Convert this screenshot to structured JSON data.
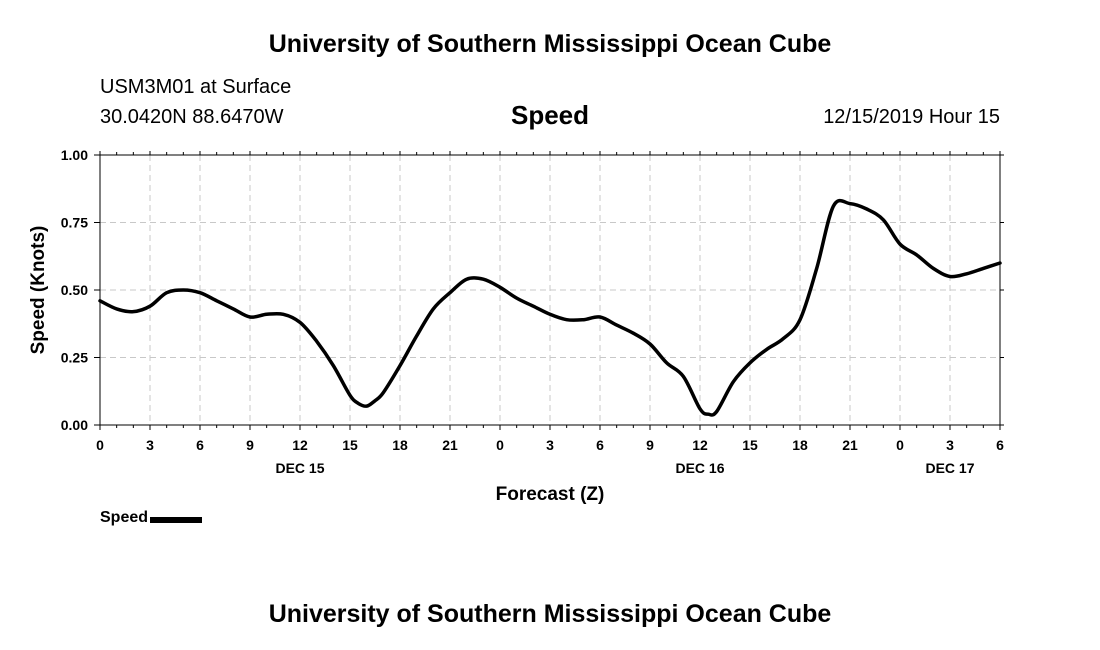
{
  "header": {
    "title": "University of Southern Mississippi Ocean Cube",
    "station": "USM3M01 at Surface",
    "coords": "30.0420N 88.6470W",
    "plot_title": "Speed",
    "timestamp": "12/15/2019 Hour 15"
  },
  "footer": {
    "title": "University of Southern Mississippi Ocean Cube"
  },
  "legend": {
    "label": "Speed"
  },
  "chart_data": {
    "type": "line",
    "title": "Speed",
    "xlabel": "Forecast (Z)",
    "ylabel": "Speed (Knots)",
    "ylim": [
      0,
      1
    ],
    "yticks": [
      "0.00",
      "0.25",
      "0.50",
      "0.75",
      "1.00"
    ],
    "xlim": [
      0,
      54
    ],
    "xticks": [
      {
        "h": 0,
        "label": "0"
      },
      {
        "h": 3,
        "label": "3"
      },
      {
        "h": 6,
        "label": "6"
      },
      {
        "h": 9,
        "label": "9"
      },
      {
        "h": 12,
        "label": "12"
      },
      {
        "h": 15,
        "label": "15"
      },
      {
        "h": 18,
        "label": "18"
      },
      {
        "h": 21,
        "label": "21"
      },
      {
        "h": 24,
        "label": "0"
      },
      {
        "h": 27,
        "label": "3"
      },
      {
        "h": 30,
        "label": "6"
      },
      {
        "h": 33,
        "label": "9"
      },
      {
        "h": 36,
        "label": "12"
      },
      {
        "h": 39,
        "label": "15"
      },
      {
        "h": 42,
        "label": "18"
      },
      {
        "h": 45,
        "label": "21"
      },
      {
        "h": 48,
        "label": "0"
      },
      {
        "h": 51,
        "label": "3"
      },
      {
        "h": 54,
        "label": "6"
      }
    ],
    "date_labels": [
      {
        "h": 12,
        "label": "DEC 15"
      },
      {
        "h": 36,
        "label": "DEC 16"
      },
      {
        "h": 51,
        "label": "DEC 17"
      }
    ],
    "grid": true,
    "legend_position": "bottom-left",
    "color": "#000000",
    "series": [
      {
        "name": "Speed",
        "x": [
          0,
          1,
          2,
          3,
          4,
          5,
          6,
          7,
          8,
          9,
          10,
          11,
          12,
          13,
          14,
          15,
          15.5,
          16,
          16.5,
          17,
          18,
          19,
          20,
          21,
          22,
          23,
          24,
          25,
          26,
          27,
          28,
          29,
          30,
          31,
          32,
          33,
          34,
          35,
          36,
          36.5,
          37,
          38,
          39,
          40,
          41,
          42,
          43,
          44,
          45,
          46,
          47,
          48,
          49,
          50,
          51,
          52,
          53,
          54
        ],
        "values": [
          0.46,
          0.43,
          0.42,
          0.44,
          0.49,
          0.5,
          0.49,
          0.46,
          0.43,
          0.4,
          0.41,
          0.41,
          0.38,
          0.31,
          0.22,
          0.11,
          0.08,
          0.07,
          0.09,
          0.12,
          0.22,
          0.33,
          0.43,
          0.49,
          0.54,
          0.54,
          0.51,
          0.47,
          0.44,
          0.41,
          0.39,
          0.39,
          0.4,
          0.37,
          0.34,
          0.3,
          0.23,
          0.18,
          0.06,
          0.04,
          0.05,
          0.16,
          0.23,
          0.28,
          0.32,
          0.39,
          0.58,
          0.81,
          0.82,
          0.8,
          0.76,
          0.67,
          0.63,
          0.58,
          0.55,
          0.56,
          0.58,
          0.6
        ]
      }
    ]
  }
}
